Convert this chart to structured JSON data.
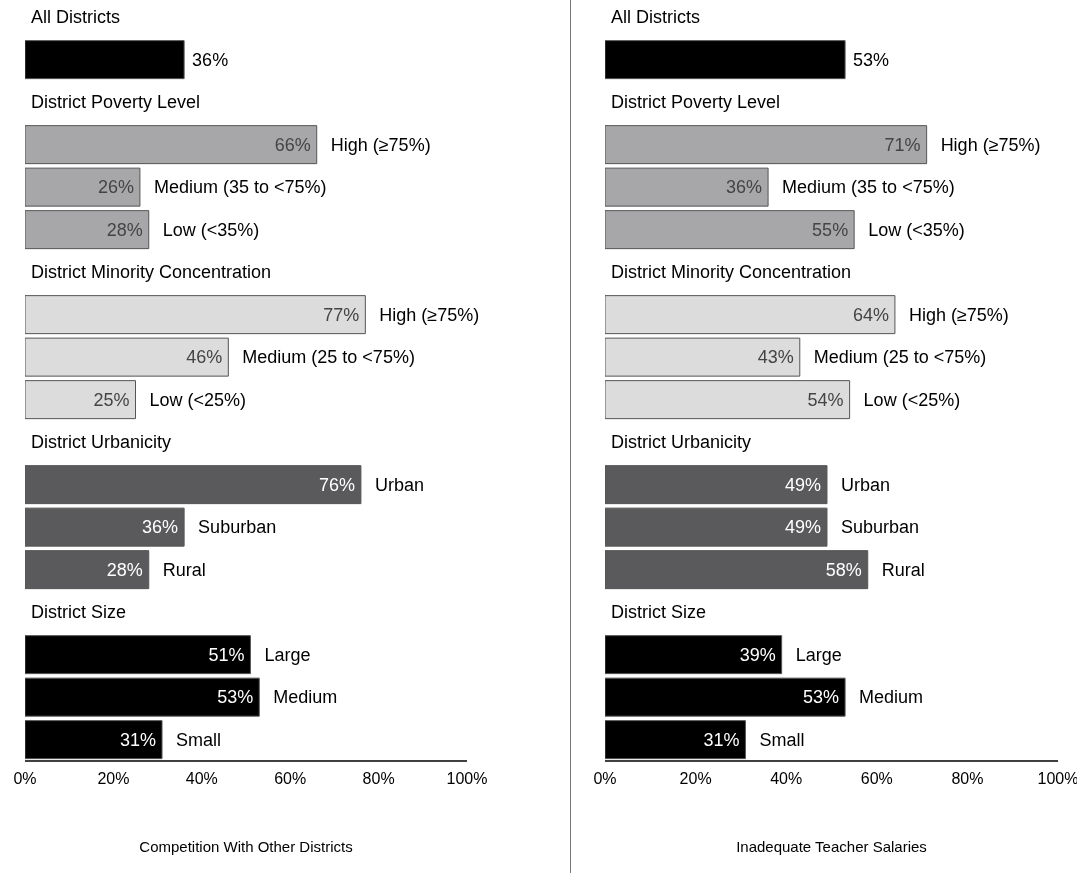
{
  "chart_data": [
    {
      "type": "bar",
      "orientation": "horizontal",
      "xlabel": "Competition With Other Districts",
      "categories": [
        "All Districts",
        null,
        "District Poverty Level",
        "High (≥75%)",
        "Medium (35 to <75%)",
        "Low (<35%)",
        "District Minority Concentration",
        "High (≥75%)",
        "Medium (25 to <75%)",
        "Low (<25%)",
        "District Urbanicity",
        "Urban",
        "Suburban",
        "Rural",
        "District Size",
        "Large",
        "Medium",
        "Small"
      ],
      "values": [
        null,
        36,
        null,
        66,
        26,
        28,
        null,
        77,
        46,
        25,
        null,
        76,
        36,
        28,
        null,
        51,
        53,
        31
      ],
      "value_labels": [
        null,
        "36%",
        null,
        "66%",
        "26%",
        "28%",
        null,
        "77%",
        "46%",
        "25%",
        null,
        "76%",
        "36%",
        "28%",
        null,
        "51%",
        "53%",
        "31%"
      ],
      "colors": [
        null,
        "#000000",
        null,
        "#a7a7a9",
        "#a7a7a9",
        "#a7a7a9",
        null,
        "#dcdcdc",
        "#dcdcdc",
        "#dcdcdc",
        null,
        "#5a5a5c",
        "#5a5a5c",
        "#5a5a5c",
        null,
        "#000000",
        "#000000",
        "#000000"
      ],
      "xlim": [
        0,
        100
      ],
      "xticks": [
        {
          "value": 0,
          "label": "0%"
        },
        {
          "value": 20,
          "label": "20%"
        },
        {
          "value": 40,
          "label": "40%"
        },
        {
          "value": 60,
          "label": "60%"
        },
        {
          "value": 80,
          "label": "80%"
        },
        {
          "value": 100,
          "label": "100%"
        }
      ]
    },
    {
      "type": "bar",
      "orientation": "horizontal",
      "xlabel": "Inadequate Teacher Salaries",
      "categories": [
        "All Districts",
        null,
        "District Poverty Level",
        "High (≥75%)",
        "Medium (35 to <75%)",
        "Low (<35%)",
        "District Minority Concentration",
        "High (≥75%)",
        "Medium (25 to <75%)",
        "Low (<25%)",
        "District Urbanicity",
        "Urban",
        "Suburban",
        "Rural",
        "District Size",
        "Large",
        "Medium",
        "Small"
      ],
      "values": [
        null,
        53,
        null,
        71,
        36,
        55,
        null,
        64,
        43,
        54,
        null,
        49,
        49,
        58,
        null,
        39,
        53,
        31
      ],
      "value_labels": [
        null,
        "53%",
        null,
        "71%",
        "36%",
        "55%",
        null,
        "64%",
        "43%",
        "54%",
        null,
        "49%",
        "49%",
        "58%",
        null,
        "39%",
        "53%",
        "31%"
      ],
      "colors": [
        null,
        "#000000",
        null,
        "#a7a7a9",
        "#a7a7a9",
        "#a7a7a9",
        null,
        "#dcdcdc",
        "#dcdcdc",
        "#dcdcdc",
        null,
        "#5a5a5c",
        "#5a5a5c",
        "#5a5a5c",
        null,
        "#000000",
        "#000000",
        "#000000"
      ],
      "xlim": [
        0,
        100
      ],
      "xticks": [
        {
          "value": 0,
          "label": "0%"
        },
        {
          "value": 20,
          "label": "20%"
        },
        {
          "value": 40,
          "label": "40%"
        },
        {
          "value": 60,
          "label": "60%"
        },
        {
          "value": 80,
          "label": "80%"
        },
        {
          "value": 100,
          "label": "100%"
        }
      ]
    }
  ]
}
